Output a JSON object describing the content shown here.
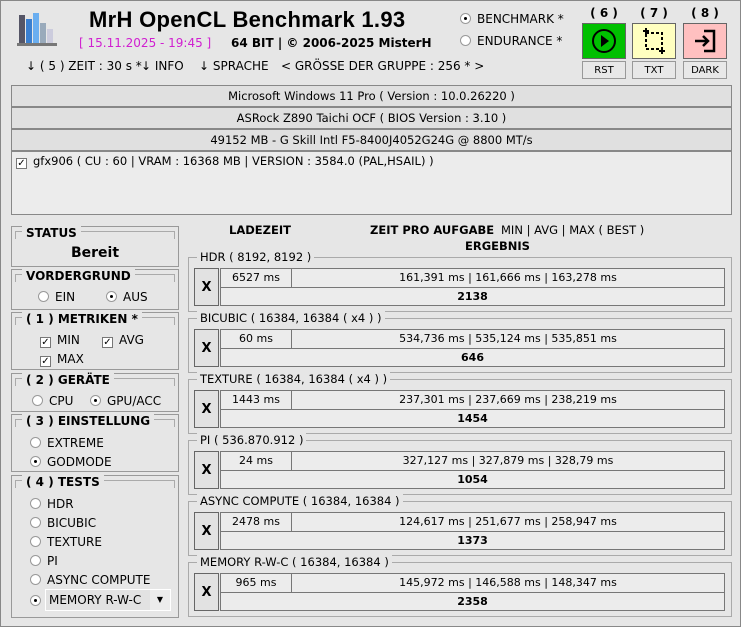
{
  "header": {
    "title": "MrH OpenCL Benchmark 1.93",
    "date": "[ 15.11.2025 - 19:45 ]",
    "copyright": "64 BIT | ©  2006-2025 MisterH"
  },
  "mode": {
    "options": [
      {
        "label": "BENCHMARK *",
        "selected": true
      },
      {
        "label": "ENDURANCE *",
        "selected": false
      }
    ]
  },
  "buttons": [
    {
      "num": "( 6 )",
      "label": "RST",
      "icon": "play-icon",
      "color": "#00c000"
    },
    {
      "num": "( 7 )",
      "label": "TXT",
      "icon": "selection-icon",
      "color": "#ffffc0"
    },
    {
      "num": "( 8 )",
      "label": "DARK",
      "icon": "exit-icon",
      "color": "#ffc0c0"
    }
  ],
  "menu": [
    "↓ ( 5 ) ZEIT : 30 s *",
    "↓ INFO",
    "↓ SPRACHE",
    "< GRÖSSE DER GRUPPE : 256 * >"
  ],
  "system": {
    "os": "Microsoft Windows 11 Pro ( Version : 10.0.26220 )",
    "board": "ASRock Z890 Taichi OCF ( BIOS Version : 3.10 )",
    "ram": "49152 MB - G Skill Intl F5-8400J4052G24G     @ 8800 MT/s",
    "devices": [
      {
        "label": "gfx906 ( CU : 60 | VRAM : 16368 MB | VERSION : 3584.0 (PAL,HSAIL) )",
        "checked": true
      }
    ]
  },
  "status": {
    "title": "STATUS",
    "value": "Bereit"
  },
  "vordergrund": {
    "title": "VORDERGRUND",
    "options": [
      {
        "label": "EIN",
        "selected": false
      },
      {
        "label": "AUS",
        "selected": true
      }
    ]
  },
  "metriken": {
    "title": "( 1 ) METRIKEN *",
    "options": [
      {
        "label": "MIN",
        "checked": true
      },
      {
        "label": "AVG",
        "checked": true
      },
      {
        "label": "MAX",
        "checked": true
      }
    ]
  },
  "geraete": {
    "title": "( 2 ) GERÄTE",
    "options": [
      {
        "label": "CPU",
        "selected": false
      },
      {
        "label": "GPU/ACC",
        "selected": true
      }
    ]
  },
  "einstellung": {
    "title": "( 3 ) EINSTELLUNG",
    "options": [
      {
        "label": "EXTREME",
        "selected": false
      },
      {
        "label": "GODMODE",
        "selected": true
      }
    ]
  },
  "tests_panel": {
    "title": "( 4 ) TESTS",
    "options": [
      {
        "label": "HDR",
        "selected": false
      },
      {
        "label": "BICUBIC",
        "selected": false
      },
      {
        "label": "TEXTURE",
        "selected": false
      },
      {
        "label": "PI",
        "selected": false
      },
      {
        "label": "ASYNC COMPUTE",
        "selected": false
      }
    ],
    "dropdown": {
      "value": "MEMORY R-W-C",
      "selected": true
    }
  },
  "columns": {
    "load": "LADEZEIT",
    "time": "ZEIT PRO AUFGABE",
    "metrics": "MIN | AVG | MAX ( BEST )",
    "result": "ERGEBNIS"
  },
  "tests": [
    {
      "name": "HDR ( 8192, 8192 )",
      "x": "X",
      "load": "6527 ms",
      "times": "161,391 ms | 161,666 ms | 163,278 ms",
      "result": "2138"
    },
    {
      "name": "BICUBIC ( 16384, 16384 ( x4 ) )",
      "x": "X",
      "load": "60 ms",
      "times": "534,736 ms | 535,124 ms | 535,851 ms",
      "result": "646"
    },
    {
      "name": "TEXTURE ( 16384, 16384 ( x4 ) )",
      "x": "X",
      "load": "1443 ms",
      "times": "237,301 ms | 237,669 ms | 238,219 ms",
      "result": "1454"
    },
    {
      "name": "PI ( 536.870.912 )",
      "x": "X",
      "load": "24 ms",
      "times": "327,127 ms | 327,879 ms | 328,79 ms",
      "result": "1054"
    },
    {
      "name": "ASYNC COMPUTE ( 16384, 16384 )",
      "x": "X",
      "load": "2478 ms",
      "times": "124,617 ms | 251,677 ms | 258,947 ms",
      "result": "1373"
    },
    {
      "name": "MEMORY R-W-C ( 16384, 16384 )",
      "x": "X",
      "load": "965 ms",
      "times": "145,972 ms | 146,588 ms | 148,347 ms",
      "result": "2358"
    }
  ]
}
